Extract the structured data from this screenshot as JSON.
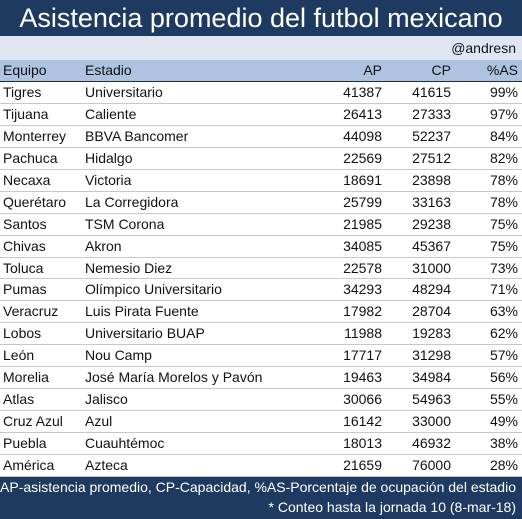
{
  "title": "Asistencia promedio del futbol mexicano",
  "author_handle": "@andresn",
  "columns": {
    "team": "Equipo",
    "stadium": "Estadio",
    "ap": "AP",
    "cp": "CP",
    "pct": "%AS"
  },
  "rows": [
    {
      "team": "Tigres",
      "stadium": "Universitario",
      "ap": "41387",
      "cp": "41615",
      "pct": "99%"
    },
    {
      "team": "Tijuana",
      "stadium": "Caliente",
      "ap": "26413",
      "cp": "27333",
      "pct": "97%"
    },
    {
      "team": "Monterrey",
      "stadium": "BBVA Bancomer",
      "ap": "44098",
      "cp": "52237",
      "pct": "84%"
    },
    {
      "team": "Pachuca",
      "stadium": "Hidalgo",
      "ap": "22569",
      "cp": "27512",
      "pct": "82%"
    },
    {
      "team": "Necaxa",
      "stadium": "Victoria",
      "ap": "18691",
      "cp": "23898",
      "pct": "78%"
    },
    {
      "team": "Querétaro",
      "stadium": "La Corregidora",
      "ap": "25799",
      "cp": "33163",
      "pct": "78%"
    },
    {
      "team": "Santos",
      "stadium": "TSM Corona",
      "ap": "21985",
      "cp": "29238",
      "pct": "75%"
    },
    {
      "team": "Chivas",
      "stadium": "Akron",
      "ap": "34085",
      "cp": "45367",
      "pct": "75%"
    },
    {
      "team": "Toluca",
      "stadium": "Nemesio Diez",
      "ap": "22578",
      "cp": "31000",
      "pct": "73%"
    },
    {
      "team": "Pumas",
      "stadium": "Olímpico Universitario",
      "ap": "34293",
      "cp": "48294",
      "pct": "71%"
    },
    {
      "team": "Veracruz",
      "stadium": "Luis Pirata Fuente",
      "ap": "17982",
      "cp": "28704",
      "pct": "63%"
    },
    {
      "team": "Lobos",
      "stadium": "Universitario BUAP",
      "ap": "11988",
      "cp": "19283",
      "pct": "62%"
    },
    {
      "team": "León",
      "stadium": "Nou Camp",
      "ap": "17717",
      "cp": "31298",
      "pct": "57%"
    },
    {
      "team": "Morelia",
      "stadium": "José María Morelos y Pavón",
      "ap": "19463",
      "cp": "34984",
      "pct": "56%"
    },
    {
      "team": "Atlas",
      "stadium": "Jalisco",
      "ap": "30066",
      "cp": "54963",
      "pct": "55%"
    },
    {
      "team": "Cruz Azul",
      "stadium": "Azul",
      "ap": "16142",
      "cp": "33000",
      "pct": "49%"
    },
    {
      "team": "Puebla",
      "stadium": "Cuauhtémoc",
      "ap": "18013",
      "cp": "46932",
      "pct": "38%"
    },
    {
      "team": "América",
      "stadium": "Azteca",
      "ap": "21659",
      "cp": "76000",
      "pct": "28%"
    }
  ],
  "footer": {
    "legend": "AP-asistencia promedio, CP-Capacidad, %AS-Porcentaje de ocupación del estadio",
    "note": "* Conteo hasta la jornada 10 (8-mar-18)"
  },
  "colors": {
    "title_bg": "#1f3a60",
    "header_bg": "#aec3e2",
    "handle_bg": "#dfe6f1"
  }
}
